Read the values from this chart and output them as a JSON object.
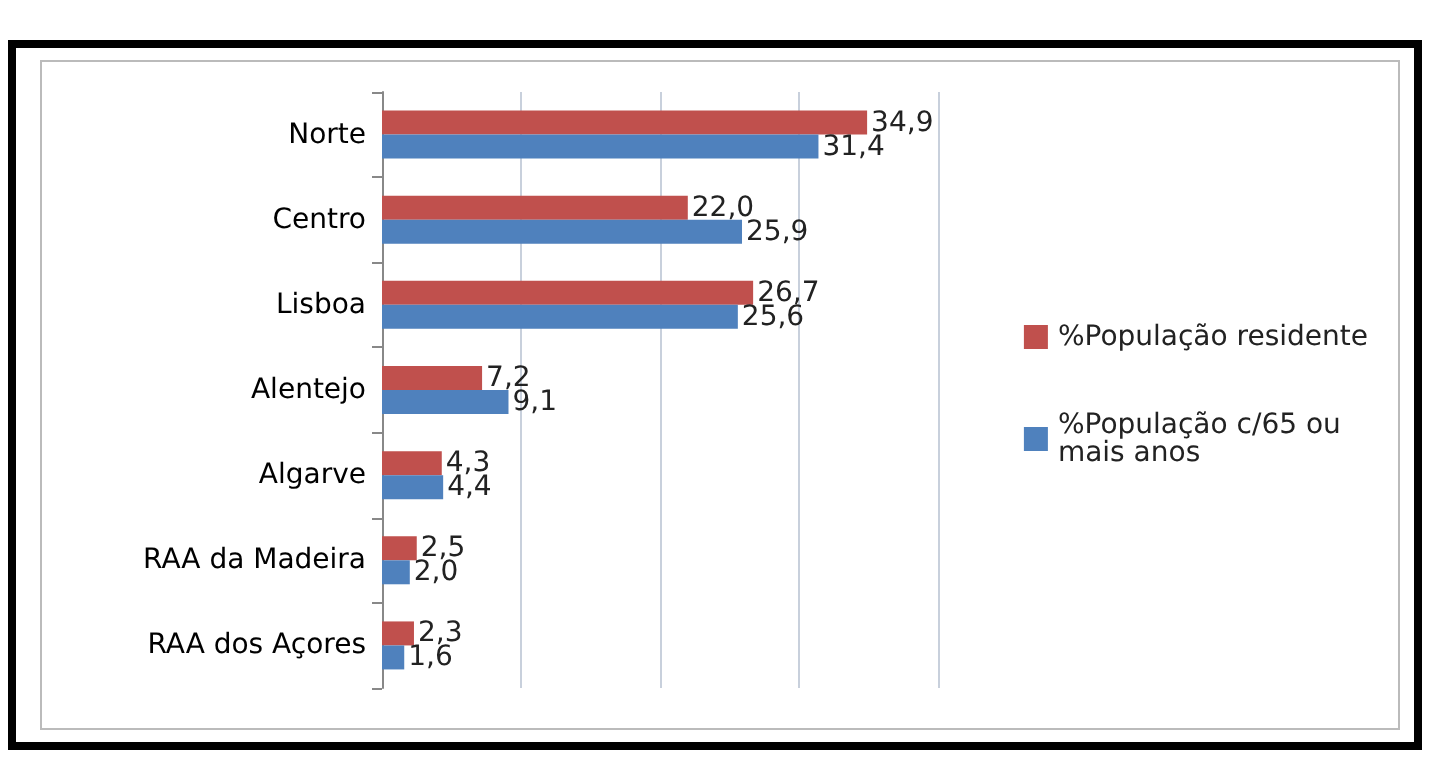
{
  "chart_data": {
    "type": "bar",
    "orientation": "horizontal",
    "categories": [
      "Norte",
      "Centro",
      "Lisboa",
      "Alentejo",
      "Algarve",
      "RAA da Madeira",
      "RAA dos Açores"
    ],
    "series": [
      {
        "name": "%População residente",
        "color": "#c0504d",
        "values": [
          34.9,
          22.0,
          26.7,
          7.2,
          4.3,
          2.5,
          2.3
        ],
        "value_labels": [
          "34,9",
          "22,0",
          "26,7",
          "7,2",
          "4,3",
          "2,5",
          "2,3"
        ]
      },
      {
        "name": "%População c/65 ou mais anos",
        "color": "#4f81bd",
        "values": [
          31.4,
          25.9,
          25.6,
          9.1,
          4.4,
          2.0,
          1.6
        ],
        "value_labels": [
          "31,4",
          "25,9",
          "25,6",
          "9,1",
          "4,4",
          "2,0",
          "1,6"
        ]
      }
    ],
    "xlim": [
      0,
      40
    ],
    "xticks": [
      {
        "value": 0,
        "label": null
      },
      {
        "value": 10,
        "label": null
      },
      {
        "value": 20,
        "label": null
      },
      {
        "value": 30,
        "label": null
      },
      {
        "value": 40,
        "label": null
      }
    ],
    "tick_labels": "y",
    "grid": "x",
    "legend": "right"
  }
}
